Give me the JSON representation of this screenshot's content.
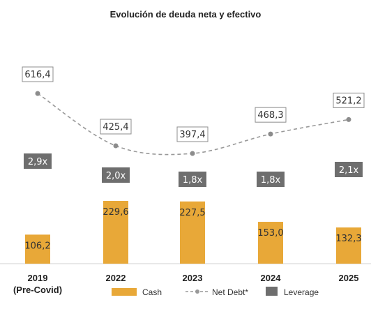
{
  "chart_data": {
    "type": "bar",
    "title": "Evolución de deuda neta y efectivo",
    "categories": [
      [
        "2019",
        "(Pre-Covid)"
      ],
      [
        "2022"
      ],
      [
        "2023"
      ],
      [
        "2024"
      ],
      [
        "2025"
      ]
    ],
    "series": [
      {
        "name": "Cash",
        "type": "bar",
        "values": [
          106.2,
          229.6,
          227.5,
          153.0,
          132.3
        ],
        "labels": [
          "106,2",
          "229,6",
          "227,5",
          "153,0",
          "132,3"
        ],
        "color": "#E8A838"
      },
      {
        "name": "Net Debt*",
        "type": "line",
        "values": [
          616.4,
          425.4,
          397.4,
          468.3,
          521.2
        ],
        "labels": [
          "616,4",
          "425,4",
          "397,4",
          "468,3",
          "521,2"
        ],
        "color": "#999999"
      },
      {
        "name": "Leverage",
        "type": "badge",
        "values": [
          2.9,
          2.0,
          1.8,
          1.8,
          2.1
        ],
        "labels": [
          "2,9x",
          "2,0x",
          "1,8x",
          "1,8x",
          "2,1x"
        ],
        "color": "#6E6E6E"
      }
    ],
    "legend_position": "bottom",
    "grid": false
  }
}
